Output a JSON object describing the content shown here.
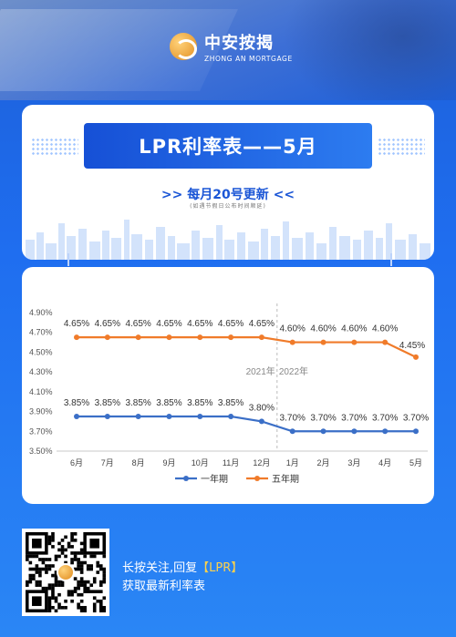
{
  "brand": {
    "name_cn": "中安按揭",
    "name_en": "ZHONG AN MORTGAGE"
  },
  "header": {
    "title": "LPR利率表——5月",
    "subtitle": ">>  每月20号更新  <<",
    "note": "(如遇节假日公布时间顺延)"
  },
  "chart_data": {
    "type": "line",
    "categories": [
      "6月",
      "7月",
      "8月",
      "9月",
      "10月",
      "11月",
      "12月",
      "1月",
      "2月",
      "3月",
      "4月",
      "5月"
    ],
    "y_ticks": [
      "4.90%",
      "4.70%",
      "4.50%",
      "4.30%",
      "4.10%",
      "3.90%",
      "3.70%",
      "3.50%"
    ],
    "ylim": [
      3.5,
      4.9
    ],
    "year_labels": {
      "left": "2021年",
      "right": "2022年"
    },
    "series": [
      {
        "name": "一年期",
        "color": "#3b6fc7",
        "values": [
          3.85,
          3.85,
          3.85,
          3.85,
          3.85,
          3.85,
          3.8,
          3.7,
          3.7,
          3.7,
          3.7,
          3.7
        ],
        "labels": [
          "3.85%",
          "3.85%",
          "3.85%",
          "3.85%",
          "3.85%",
          "3.85%",
          "3.80%",
          "3.70%",
          "3.70%",
          "3.70%",
          "3.70%",
          "3.70%"
        ]
      },
      {
        "name": "五年期",
        "color": "#f07b2a",
        "values": [
          4.65,
          4.65,
          4.65,
          4.65,
          4.65,
          4.65,
          4.65,
          4.6,
          4.6,
          4.6,
          4.6,
          4.45
        ],
        "labels": [
          "4.65%",
          "4.65%",
          "4.65%",
          "4.65%",
          "4.65%",
          "4.65%",
          "4.65%",
          "4.60%",
          "4.60%",
          "4.60%",
          "4.60%",
          "4.45%"
        ]
      }
    ],
    "legend": "bottom",
    "grid": false
  },
  "cta": {
    "line1_prefix": "长按关注,回复",
    "keyword": "【LPR】",
    "line2": "获取最新利率表"
  }
}
